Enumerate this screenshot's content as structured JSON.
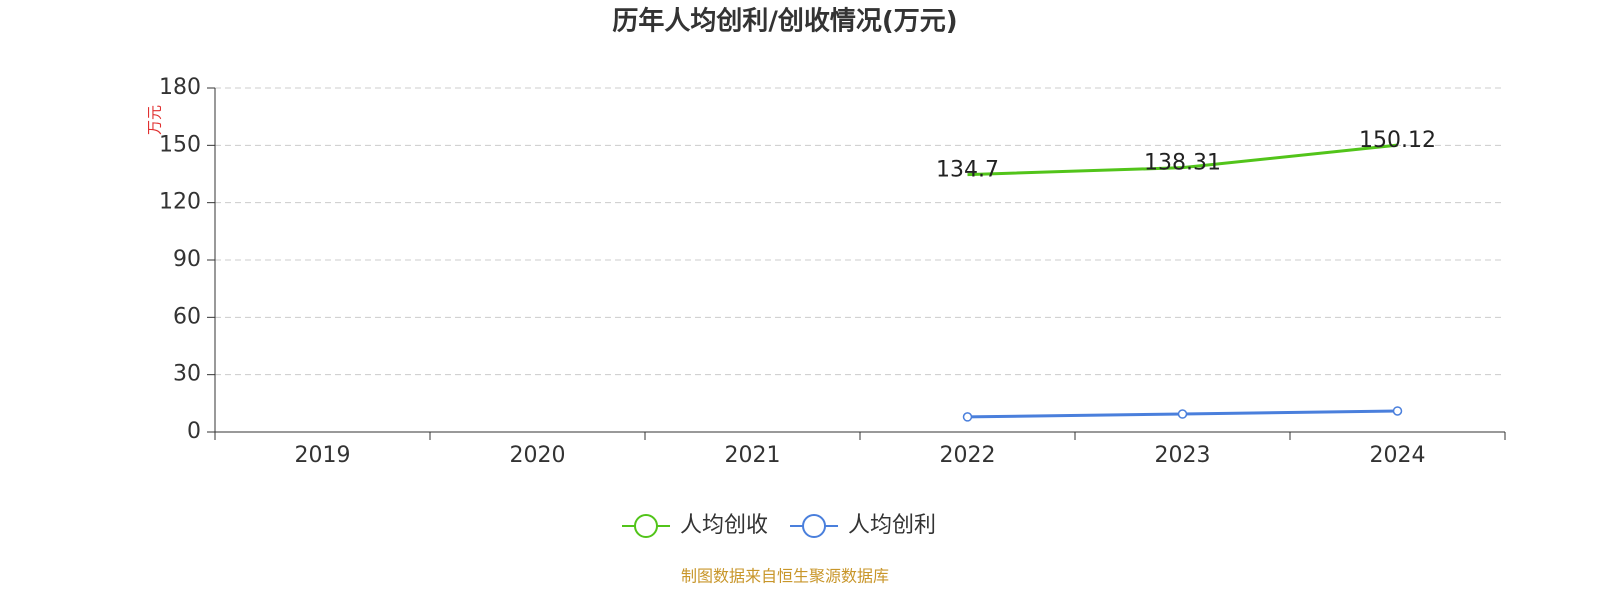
{
  "chart_data": {
    "type": "line",
    "title": "历年人均创利/创收情况(万元)",
    "y_label": "万元",
    "categories": [
      "2019",
      "2020",
      "2021",
      "2022",
      "2023",
      "2024"
    ],
    "series": [
      {
        "name": "人均创收",
        "color": "#52c41a",
        "markers": false,
        "show_value_labels": true,
        "values": [
          null,
          null,
          null,
          134.7,
          138.31,
          150.12
        ]
      },
      {
        "name": "人均创利",
        "color": "#4a7fdc",
        "markers": true,
        "show_value_labels": false,
        "values": [
          null,
          null,
          null,
          7.9,
          9.4,
          11.0
        ]
      }
    ],
    "ylim": [
      0,
      180
    ],
    "yticks": [
      0,
      30,
      60,
      90,
      120,
      150,
      180
    ],
    "grid": true,
    "legend": "bottom",
    "footer": "制图数据来自恒生聚源数据库"
  }
}
